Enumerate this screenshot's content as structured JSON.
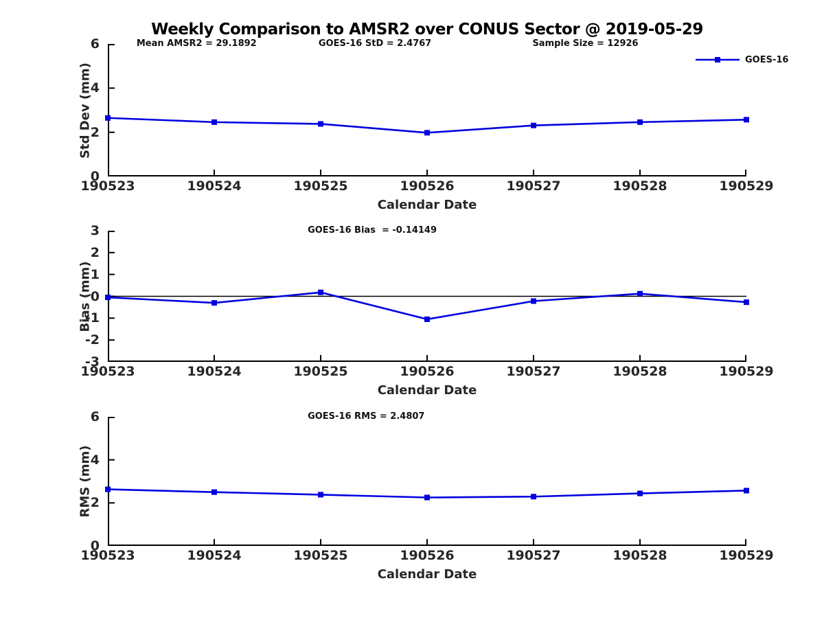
{
  "title": "Weekly Comparison to AMSR2 over CONUS Sector @ 2019-05-29",
  "legend": {
    "label": "GOES-16"
  },
  "colors": {
    "series": "#0000e0",
    "axis": "#000000",
    "text": "#262626",
    "background": "#ffffff"
  },
  "chart_data": [
    {
      "type": "line",
      "ylabel": "Std Dev (mm)",
      "xlabel": "Calendar Date",
      "x": [
        "190523",
        "190524",
        "190525",
        "190526",
        "190527",
        "190528",
        "190529"
      ],
      "ylim": [
        0,
        6
      ],
      "yticks": [
        0,
        2,
        4,
        6
      ],
      "grid": false,
      "legend_position": "top-right-outside",
      "annotations": [
        "Mean AMSR2 = 29.1892",
        "GOES-16 StD = 2.4767",
        "Sample Size = 12926"
      ],
      "series": [
        {
          "name": "GOES-16",
          "values": [
            2.65,
            2.46,
            2.38,
            1.98,
            2.31,
            2.46,
            2.57
          ]
        }
      ]
    },
    {
      "type": "line",
      "ylabel": "Bias (mm)",
      "xlabel": "Calendar Date",
      "x": [
        "190523",
        "190524",
        "190525",
        "190526",
        "190527",
        "190528",
        "190529"
      ],
      "ylim": [
        -3,
        3
      ],
      "yticks": [
        -3,
        -2,
        -1,
        0,
        1,
        2,
        3
      ],
      "grid": false,
      "zero_line": true,
      "annotations": [
        "GOES-16 Bias  = -0.14149"
      ],
      "series": [
        {
          "name": "GOES-16",
          "values": [
            -0.05,
            -0.3,
            0.18,
            -1.05,
            -0.22,
            0.12,
            -0.27
          ]
        }
      ]
    },
    {
      "type": "line",
      "ylabel": "RMS (mm)",
      "xlabel": "Calendar Date",
      "x": [
        "190523",
        "190524",
        "190525",
        "190526",
        "190527",
        "190528",
        "190529"
      ],
      "ylim": [
        0,
        6
      ],
      "yticks": [
        0,
        2,
        4,
        6
      ],
      "grid": false,
      "annotations": [
        "GOES-16 RMS = 2.4807"
      ],
      "series": [
        {
          "name": "GOES-16",
          "values": [
            2.63,
            2.5,
            2.38,
            2.25,
            2.29,
            2.44,
            2.57
          ]
        }
      ]
    }
  ]
}
